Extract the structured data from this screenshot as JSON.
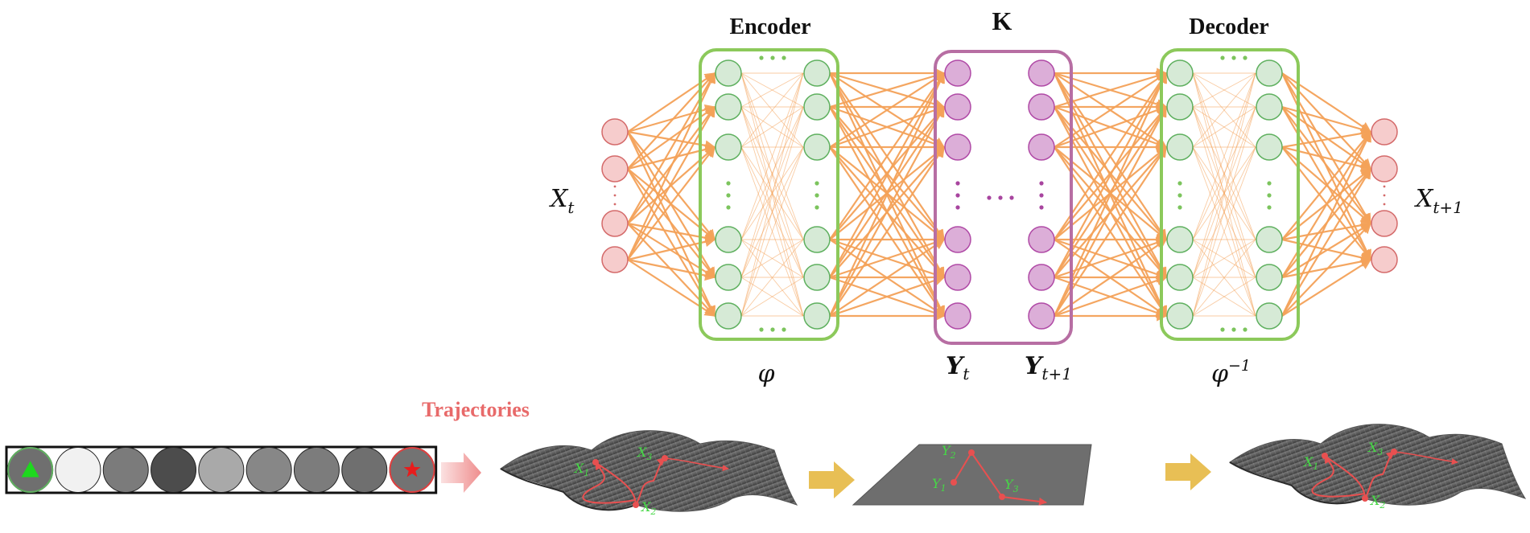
{
  "network": {
    "encoder_title": "Encoder",
    "koopman_title": "K",
    "decoder_title": "Decoder",
    "input_label": "X",
    "input_sub": "t",
    "output_label": "X",
    "output_sub": "t+1",
    "phi_label": "φ",
    "latent_in_label": "Y",
    "latent_in_sub": "t",
    "latent_out_label": "Y",
    "latent_out_sub": "t+1",
    "phi_inv_label": "φ",
    "phi_inv_sup": "−1"
  },
  "bottom": {
    "trajectories_label": "Trajectories",
    "surface1_points": [
      {
        "label": "X",
        "sub": "1"
      },
      {
        "label": "X",
        "sub": "3"
      },
      {
        "label": "X",
        "sub": "2"
      }
    ],
    "plane_points": [
      {
        "label": "Y",
        "sub": "2"
      },
      {
        "label": "Y",
        "sub": "1"
      },
      {
        "label": "Y",
        "sub": "3"
      }
    ],
    "surface2_points": [
      {
        "label": "X",
        "sub": "1"
      },
      {
        "label": "X",
        "sub": "3"
      },
      {
        "label": "X",
        "sub": "2"
      }
    ],
    "grid_cell_shades": [
      "#6f6f6f",
      "#f1f1f1",
      "#7b7b7b",
      "#4c4c4c",
      "#a9a9a9",
      "#878787",
      "#7c7c7c",
      "#6f6f6f",
      "#737373"
    ]
  },
  "colors": {
    "pink_fill": "#f6cccc",
    "pink_stroke": "#d46a6a",
    "green_fill": "#d6ead6",
    "green_stroke": "#5fb05f",
    "green_box": "#8cc95b",
    "purple_fill": "#dcaed8",
    "purple_stroke": "#b04aa6",
    "purple_box": "#b76ea3",
    "edge": "#f4a259",
    "arrow_gold": "#e8bf55",
    "arrow_pink": "#f1a5a5"
  }
}
